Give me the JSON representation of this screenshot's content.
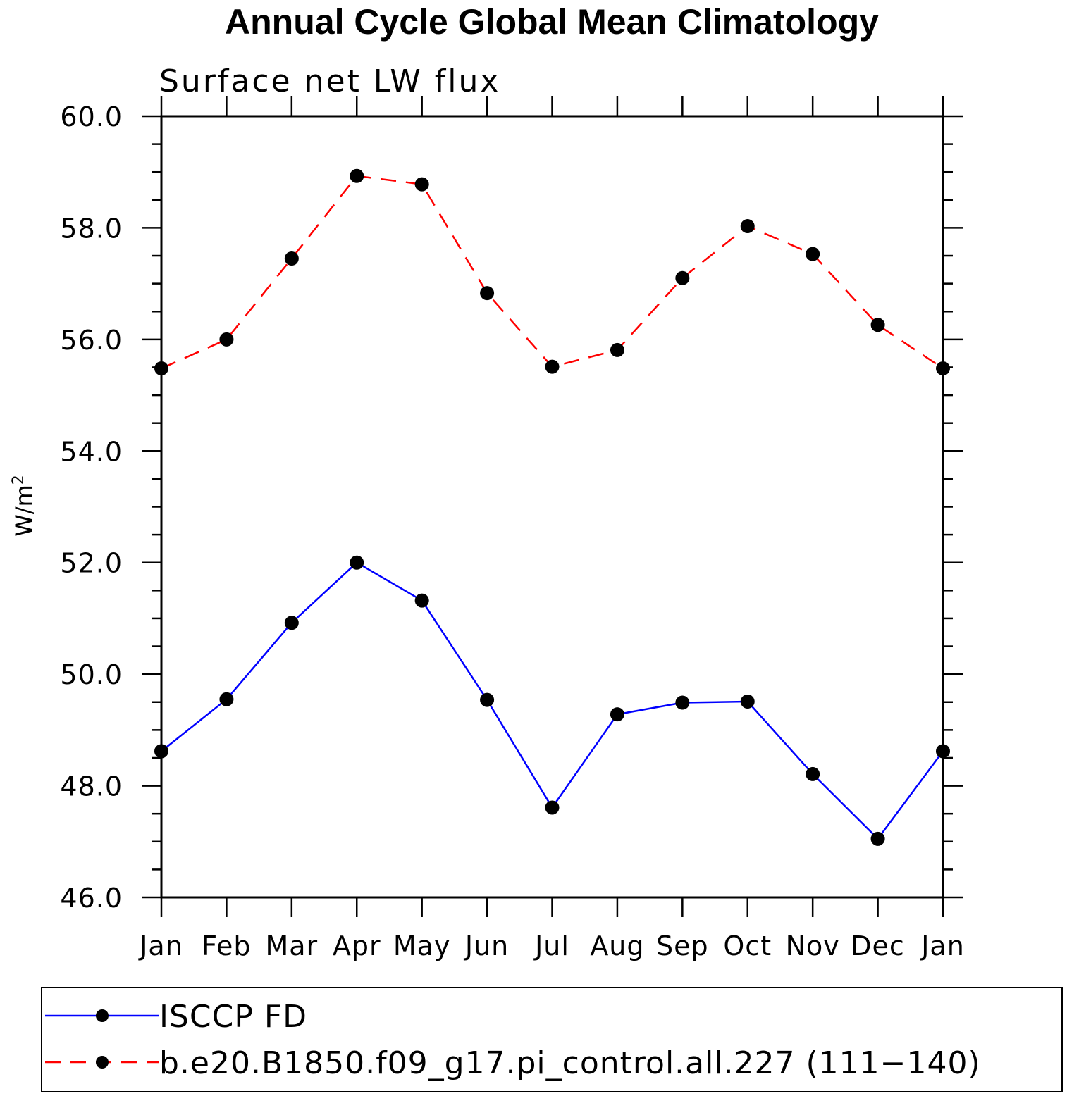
{
  "chart_data": {
    "type": "line",
    "title": "Annual Cycle Global Mean Climatology",
    "subtitle": "Surface net LW flux",
    "xlabel": "",
    "ylabel": "W/m",
    "ylabel_superscript": "2",
    "categories": [
      "Jan",
      "Feb",
      "Mar",
      "Apr",
      "May",
      "Jun",
      "Jul",
      "Aug",
      "Sep",
      "Oct",
      "Nov",
      "Dec",
      "Jan"
    ],
    "ylim": [
      46.0,
      60.0
    ],
    "yticks": [
      "46.0",
      "48.0",
      "50.0",
      "52.0",
      "54.0",
      "56.0",
      "58.0",
      "60.0"
    ],
    "yticks_values": [
      46,
      48,
      50,
      52,
      54,
      56,
      58,
      60
    ],
    "y_minor_step": 0.5,
    "grid": false,
    "legend_position": "bottom",
    "series": [
      {
        "name": "ISCCP FD",
        "color": "#0000ff",
        "line_style": "solid",
        "marker": "filled-circle",
        "values": [
          48.62,
          49.55,
          50.92,
          52.0,
          51.32,
          49.54,
          47.61,
          49.28,
          49.49,
          49.51,
          48.21,
          47.05,
          48.62
        ]
      },
      {
        "name": "b.e20.B1850.f09_g17.pi_control.all.227 (111−140)",
        "color": "#ff0000",
        "line_style": "dashed",
        "marker": "filled-circle",
        "values": [
          55.48,
          56.0,
          57.45,
          58.93,
          58.78,
          56.83,
          55.51,
          55.81,
          57.1,
          58.03,
          57.53,
          56.26,
          55.48
        ]
      }
    ]
  }
}
